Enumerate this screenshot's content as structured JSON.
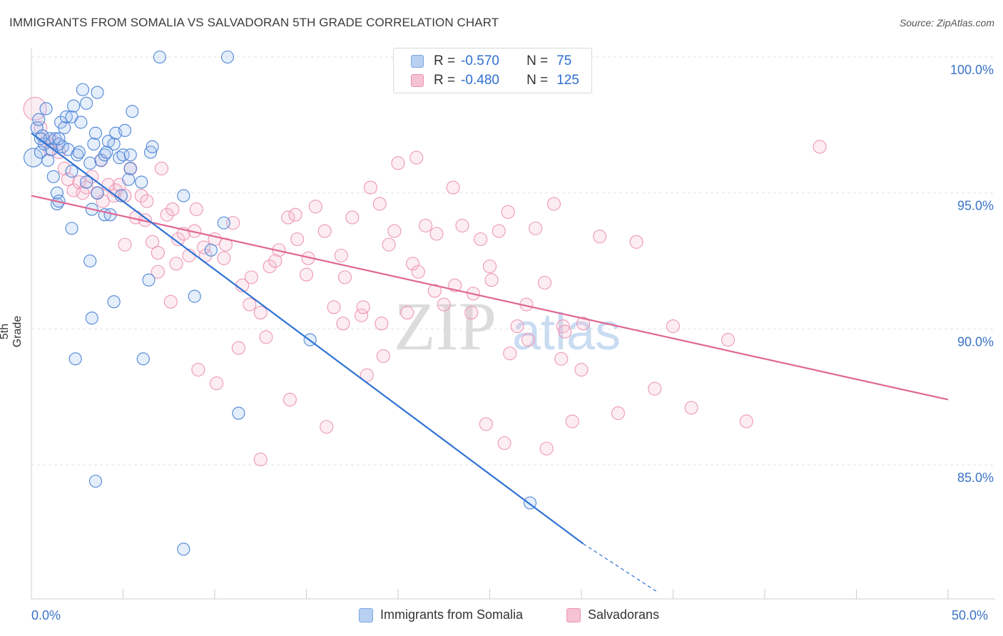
{
  "header": {
    "title": "IMMIGRANTS FROM SOMALIA VS SALVADORAN 5TH GRADE CORRELATION CHART",
    "source": "Source: ZipAtlas.com"
  },
  "legend": {
    "r_label": "R =",
    "n_label": "N =",
    "rows": [
      {
        "r": "-0.570",
        "n": "75"
      },
      {
        "r": "-0.480",
        "n": "125"
      }
    ]
  },
  "bottom_legend": [
    "Immigrants from Somalia",
    "Salvadorans"
  ],
  "watermark": {
    "zip": "ZIP",
    "atlas": "atlas"
  },
  "chart_data": {
    "type": "scatter",
    "title": "IMMIGRANTS FROM SOMALIA VS SALVADORAN 5TH GRADE CORRELATION CHART",
    "xlabel": "",
    "ylabel": "5th Grade",
    "xlim": [
      0,
      50
    ],
    "ylim": [
      80.3,
      100.4
    ],
    "x_tick_labels": [
      "0.0%",
      "50.0%"
    ],
    "y_ticks": [
      85,
      90,
      95,
      100
    ],
    "y_tick_labels": [
      "85.0%",
      "90.0%",
      "95.0%",
      "100.0%"
    ],
    "grid": true,
    "colors": {
      "blue": "#6a9ee0",
      "pink": "#ee97b6",
      "blue_line": "#2f72d4",
      "pink_line": "#e06793",
      "tick_text": "#3b73c6"
    },
    "series": [
      {
        "name": "Immigrants from Somalia",
        "color": "#6a9ee0",
        "trend": {
          "x0": 0,
          "y0": 97.2,
          "x1": 30.1,
          "y1": 82.1,
          "dash_to_x": 34.2,
          "dash_to_y": 80.3
        },
        "points": [
          [
            0.1,
            96.3
          ],
          [
            0.3,
            97.4
          ],
          [
            0.4,
            97.7
          ],
          [
            0.5,
            96.5
          ],
          [
            0.6,
            97.1
          ],
          [
            0.7,
            96.8
          ],
          [
            0.8,
            98.1
          ],
          [
            0.9,
            96.2
          ],
          [
            1.0,
            97.0
          ],
          [
            1.1,
            96.6
          ],
          [
            1.2,
            95.6
          ],
          [
            1.3,
            97.0
          ],
          [
            1.4,
            94.6
          ],
          [
            1.5,
            96.8
          ],
          [
            1.6,
            97.6
          ],
          [
            1.7,
            96.7
          ],
          [
            1.8,
            97.4
          ],
          [
            1.9,
            97.8
          ],
          [
            2.0,
            96.6
          ],
          [
            2.2,
            97.8
          ],
          [
            2.3,
            98.2
          ],
          [
            2.5,
            96.4
          ],
          [
            2.7,
            97.6
          ],
          [
            2.8,
            98.8
          ],
          [
            3.0,
            98.3
          ],
          [
            3.2,
            96.1
          ],
          [
            3.4,
            96.8
          ],
          [
            3.5,
            97.2
          ],
          [
            3.6,
            98.7
          ],
          [
            3.8,
            96.2
          ],
          [
            4.0,
            96.4
          ],
          [
            4.2,
            96.9
          ],
          [
            4.5,
            96.8
          ],
          [
            4.6,
            97.2
          ],
          [
            4.8,
            96.3
          ],
          [
            5.0,
            96.4
          ],
          [
            5.1,
            97.3
          ],
          [
            5.3,
            95.5
          ],
          [
            5.4,
            95.9
          ],
          [
            5.5,
            98.0
          ],
          [
            3.0,
            95.4
          ],
          [
            3.3,
            94.4
          ],
          [
            3.6,
            95.0
          ],
          [
            4.0,
            94.2
          ],
          [
            4.3,
            94.2
          ],
          [
            1.4,
            95.0
          ],
          [
            1.5,
            94.7
          ],
          [
            2.2,
            95.8
          ],
          [
            2.2,
            93.7
          ],
          [
            4.9,
            94.9
          ],
          [
            5.4,
            96.4
          ],
          [
            6.0,
            95.4
          ],
          [
            6.5,
            96.5
          ],
          [
            6.6,
            96.7
          ],
          [
            3.2,
            92.5
          ],
          [
            3.3,
            90.4
          ],
          [
            4.5,
            91.0
          ],
          [
            6.4,
            91.8
          ],
          [
            8.3,
            94.9
          ],
          [
            8.9,
            91.2
          ],
          [
            9.8,
            92.9
          ],
          [
            10.5,
            93.9
          ],
          [
            2.4,
            88.9
          ],
          [
            6.1,
            88.9
          ],
          [
            15.2,
            89.6
          ],
          [
            11.3,
            86.9
          ],
          [
            3.5,
            84.4
          ],
          [
            8.3,
            81.9
          ],
          [
            27.2,
            83.6
          ],
          [
            7.0,
            100.0
          ],
          [
            10.7,
            100.0
          ],
          [
            1.5,
            97.0
          ],
          [
            2.6,
            96.5
          ],
          [
            0.5,
            97.0
          ],
          [
            4.1,
            96.5
          ]
        ]
      },
      {
        "name": "Salvadorans",
        "color": "#ee97b6",
        "trend": {
          "x0": 0,
          "y0": 94.9,
          "x1": 50,
          "y1": 87.4
        },
        "points": [
          [
            0.2,
            98.1
          ],
          [
            0.5,
            97.4
          ],
          [
            0.8,
            96.9
          ],
          [
            1.0,
            96.6
          ],
          [
            1.2,
            96.9
          ],
          [
            1.5,
            96.5
          ],
          [
            1.8,
            95.9
          ],
          [
            2.0,
            95.5
          ],
          [
            2.3,
            95.1
          ],
          [
            2.6,
            95.4
          ],
          [
            3.0,
            95.2
          ],
          [
            3.3,
            95.6
          ],
          [
            3.6,
            95.0
          ],
          [
            3.9,
            94.7
          ],
          [
            4.2,
            95.3
          ],
          [
            4.5,
            94.9
          ],
          [
            4.8,
            95.3
          ],
          [
            5.1,
            94.9
          ],
          [
            5.4,
            95.9
          ],
          [
            5.7,
            94.1
          ],
          [
            6.0,
            94.9
          ],
          [
            6.3,
            94.7
          ],
          [
            6.6,
            93.2
          ],
          [
            6.9,
            92.1
          ],
          [
            7.1,
            95.9
          ],
          [
            7.4,
            94.2
          ],
          [
            7.7,
            94.4
          ],
          [
            8.0,
            93.3
          ],
          [
            8.3,
            93.5
          ],
          [
            8.6,
            92.7
          ],
          [
            9.0,
            94.4
          ],
          [
            9.5,
            92.7
          ],
          [
            10.0,
            93.3
          ],
          [
            10.5,
            92.6
          ],
          [
            11.0,
            93.9
          ],
          [
            11.5,
            91.6
          ],
          [
            12.0,
            91.9
          ],
          [
            12.5,
            90.6
          ],
          [
            12.8,
            89.7
          ],
          [
            13.0,
            92.3
          ],
          [
            13.5,
            92.9
          ],
          [
            14.0,
            94.1
          ],
          [
            14.5,
            93.3
          ],
          [
            15.0,
            92.0
          ],
          [
            15.5,
            94.5
          ],
          [
            16.0,
            93.6
          ],
          [
            16.5,
            90.8
          ],
          [
            17.0,
            90.2
          ],
          [
            17.5,
            94.1
          ],
          [
            18.0,
            90.5
          ],
          [
            18.5,
            95.2
          ],
          [
            19.0,
            94.6
          ],
          [
            19.5,
            93.1
          ],
          [
            20.0,
            96.1
          ],
          [
            20.5,
            90.6
          ],
          [
            21.0,
            96.3
          ],
          [
            21.5,
            93.8
          ],
          [
            22.0,
            91.4
          ],
          [
            22.5,
            90.9
          ],
          [
            23.0,
            95.2
          ],
          [
            23.5,
            93.8
          ],
          [
            24.0,
            90.6
          ],
          [
            24.5,
            93.3
          ],
          [
            25.0,
            92.3
          ],
          [
            25.5,
            93.6
          ],
          [
            26.0,
            94.3
          ],
          [
            26.5,
            90.1
          ],
          [
            27.0,
            90.9
          ],
          [
            27.5,
            93.7
          ],
          [
            28.0,
            91.7
          ],
          [
            28.5,
            94.6
          ],
          [
            29.0,
            90.1
          ],
          [
            29.5,
            86.6
          ],
          [
            30.0,
            88.5
          ],
          [
            31.0,
            93.4
          ],
          [
            32.0,
            86.9
          ],
          [
            33.0,
            93.2
          ],
          [
            34.0,
            87.8
          ],
          [
            35.0,
            90.1
          ],
          [
            36.0,
            87.1
          ],
          [
            38.0,
            89.6
          ],
          [
            39.0,
            86.6
          ],
          [
            43.0,
            96.7
          ],
          [
            28.1,
            85.6
          ],
          [
            28.9,
            88.9
          ],
          [
            25.8,
            85.8
          ],
          [
            24.8,
            86.5
          ],
          [
            12.5,
            85.2
          ],
          [
            14.1,
            87.4
          ],
          [
            16.1,
            86.4
          ],
          [
            19.8,
            93.6
          ],
          [
            20.8,
            92.4
          ],
          [
            22.1,
            93.5
          ],
          [
            11.3,
            89.3
          ],
          [
            10.1,
            88.0
          ],
          [
            9.1,
            88.5
          ],
          [
            7.6,
            91.0
          ],
          [
            6.9,
            92.8
          ],
          [
            5.1,
            93.1
          ],
          [
            8.9,
            93.6
          ],
          [
            13.3,
            92.5
          ],
          [
            15.1,
            92.6
          ],
          [
            17.1,
            91.9
          ],
          [
            18.1,
            90.8
          ],
          [
            19.1,
            90.2
          ],
          [
            21.1,
            92.1
          ],
          [
            23.1,
            91.6
          ],
          [
            24.1,
            91.3
          ],
          [
            25.1,
            91.8
          ],
          [
            26.1,
            89.1
          ],
          [
            27.1,
            89.6
          ],
          [
            29.1,
            89.9
          ],
          [
            30.1,
            90.2
          ],
          [
            2.8,
            95.0
          ],
          [
            3.8,
            96.2
          ],
          [
            4.6,
            95.1
          ],
          [
            6.2,
            94.0
          ],
          [
            7.9,
            92.4
          ],
          [
            9.4,
            93.0
          ],
          [
            10.6,
            93.1
          ],
          [
            11.9,
            90.9
          ],
          [
            14.4,
            94.2
          ],
          [
            16.9,
            92.7
          ],
          [
            18.3,
            88.3
          ],
          [
            19.2,
            89.0
          ]
        ]
      }
    ]
  }
}
